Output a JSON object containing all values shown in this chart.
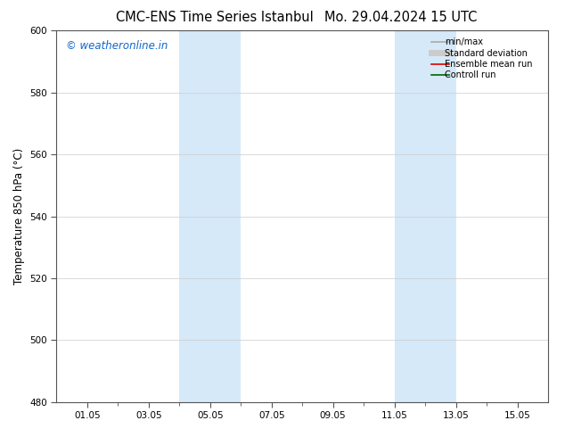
{
  "title_left": "CMC-ENS Time Series Istanbul",
  "title_right": "Mo. 29.04.2024 15 UTC",
  "ylabel": "Temperature 850 hPa (°C)",
  "watermark": "© weatheronline.in",
  "watermark_color": "#1166CC",
  "ylim": [
    480,
    600
  ],
  "yticks": [
    480,
    500,
    520,
    540,
    560,
    580,
    600
  ],
  "xtick_labels": [
    "01.05",
    "03.05",
    "05.05",
    "07.05",
    "09.05",
    "11.05",
    "13.05",
    "15.05"
  ],
  "xtick_positions": [
    1,
    3,
    5,
    7,
    9,
    11,
    13,
    15
  ],
  "xminor_positions": [
    2,
    4,
    6,
    8,
    10,
    12,
    14
  ],
  "xlim": [
    0,
    16
  ],
  "blue_bands": [
    {
      "xmin": 4.0,
      "xmax": 6.0
    },
    {
      "xmin": 11.0,
      "xmax": 13.0
    }
  ],
  "blue_band_color": "#D6E9F8",
  "grid_color": "#CCCCCC",
  "legend_items": [
    {
      "label": "min/max",
      "color": "#AAAAAA",
      "lw": 1.2
    },
    {
      "label": "Standard deviation",
      "color": "#CCCCCC",
      "lw": 5
    },
    {
      "label": "Ensemble mean run",
      "color": "#DD0000",
      "lw": 1.2
    },
    {
      "label": "Controll run",
      "color": "#006600",
      "lw": 1.2
    }
  ],
  "bg_color": "#FFFFFF",
  "spine_color": "#555555",
  "title_fontsize": 10.5,
  "tick_fontsize": 7.5,
  "ylabel_fontsize": 8.5,
  "watermark_fontsize": 8.5
}
